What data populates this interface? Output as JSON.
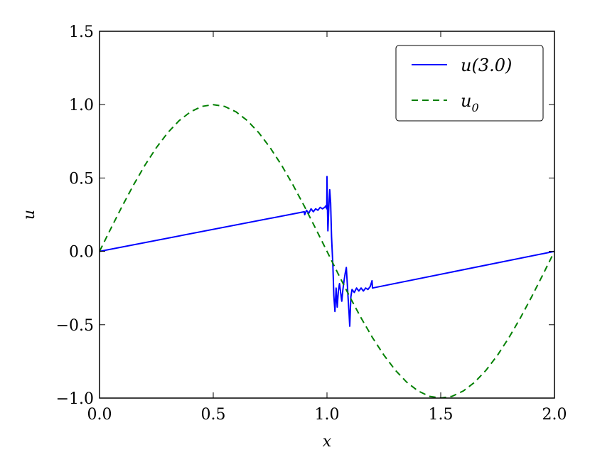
{
  "chart_data": {
    "type": "line",
    "title": "",
    "xlabel": "x",
    "ylabel": "u",
    "xlim": [
      0.0,
      2.0
    ],
    "ylim": [
      -1.0,
      1.5
    ],
    "x_ticks": [
      0.0,
      0.5,
      1.0,
      1.5,
      2.0
    ],
    "x_tick_labels": [
      "0.0",
      "0.5",
      "1.0",
      "1.5",
      "2.0"
    ],
    "y_ticks": [
      -1.0,
      -0.5,
      0.0,
      0.5,
      1.0,
      1.5
    ],
    "y_tick_labels": [
      "−1.0",
      "−0.5",
      "0.0",
      "0.5",
      "1.0",
      "1.5"
    ],
    "grid": false,
    "legend_position": "top-right",
    "series": [
      {
        "name": "u(3.0)",
        "legend_main": "u(3.0)",
        "legend_sub": "",
        "color": "#0000ff",
        "style": "solid",
        "x": [
          0.0,
          0.9,
          0.902,
          0.91,
          0.92,
          0.93,
          0.94,
          0.95,
          0.96,
          0.97,
          0.98,
          0.99,
          0.995,
          0.999,
          1.0,
          1.002,
          1.004,
          1.008,
          1.012,
          1.016,
          1.02,
          1.026,
          1.03,
          1.035,
          1.04,
          1.045,
          1.05,
          1.055,
          1.06,
          1.065,
          1.07,
          1.075,
          1.08,
          1.085,
          1.09,
          1.094,
          1.097,
          1.1,
          1.105,
          1.11,
          1.12,
          1.13,
          1.14,
          1.15,
          1.16,
          1.17,
          1.18,
          1.19,
          1.198,
          1.2,
          2.0
        ],
        "y": [
          0.0,
          0.27,
          0.25,
          0.28,
          0.26,
          0.29,
          0.27,
          0.29,
          0.28,
          0.3,
          0.29,
          0.3,
          0.31,
          0.29,
          0.51,
          0.3,
          0.14,
          0.3,
          0.42,
          0.33,
          0.1,
          -0.1,
          -0.3,
          -0.41,
          -0.25,
          -0.38,
          -0.27,
          -0.22,
          -0.28,
          -0.34,
          -0.26,
          -0.2,
          -0.15,
          -0.11,
          -0.24,
          -0.35,
          -0.42,
          -0.51,
          -0.31,
          -0.26,
          -0.28,
          -0.25,
          -0.27,
          -0.25,
          -0.27,
          -0.25,
          -0.26,
          -0.24,
          -0.2,
          -0.25,
          0.0
        ]
      },
      {
        "name": "u0",
        "legend_main": "u",
        "legend_sub": "0",
        "color": "#008000",
        "style": "dashed",
        "x": [
          0.0,
          0.05,
          0.1,
          0.15,
          0.2,
          0.25,
          0.3,
          0.35,
          0.4,
          0.45,
          0.5,
          0.55,
          0.6,
          0.65,
          0.7,
          0.75,
          0.8,
          0.85,
          0.9,
          0.95,
          1.0,
          1.05,
          1.1,
          1.15,
          1.2,
          1.25,
          1.3,
          1.35,
          1.4,
          1.45,
          1.5,
          1.55,
          1.6,
          1.65,
          1.7,
          1.75,
          1.8,
          1.85,
          1.9,
          1.95,
          2.0
        ],
        "y": [
          0.0,
          0.156,
          0.309,
          0.454,
          0.588,
          0.707,
          0.809,
          0.891,
          0.951,
          0.988,
          1.0,
          0.988,
          0.951,
          0.891,
          0.809,
          0.707,
          0.588,
          0.454,
          0.309,
          0.156,
          0.0,
          -0.156,
          -0.309,
          -0.454,
          -0.588,
          -0.707,
          -0.809,
          -0.891,
          -0.951,
          -0.988,
          -1.0,
          -0.988,
          -0.951,
          -0.891,
          -0.809,
          -0.707,
          -0.588,
          -0.454,
          -0.309,
          -0.156,
          0.0
        ]
      }
    ]
  }
}
